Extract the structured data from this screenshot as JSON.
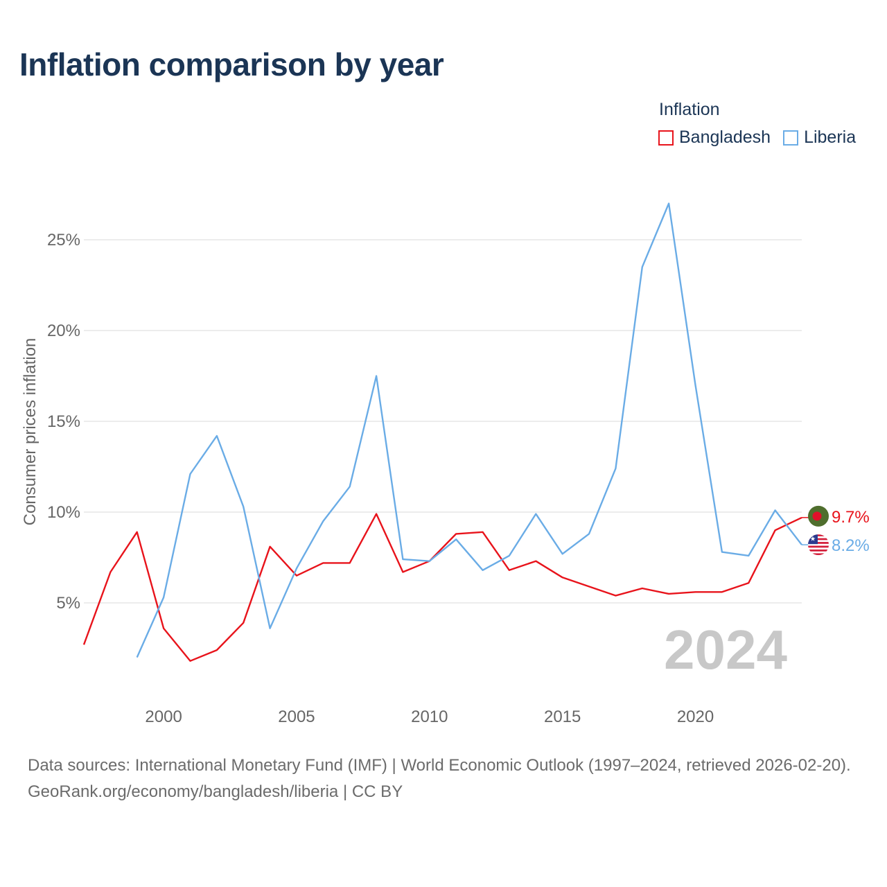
{
  "chart_data": {
    "type": "line",
    "title": "Inflation comparison by year",
    "ylabel": "Consumer prices inflation",
    "xlabel": "",
    "legend_title": "Inflation",
    "legend_position": "top-right",
    "year_watermark": "2024",
    "ylim": [
      0,
      30
    ],
    "xlim": [
      1997,
      2024
    ],
    "yticks": [
      5,
      10,
      15,
      20,
      25
    ],
    "ytick_labels": [
      "5%",
      "10%",
      "15%",
      "20%",
      "25%"
    ],
    "xticks": [
      2000,
      2005,
      2010,
      2015,
      2020
    ],
    "xtick_labels": [
      "2000",
      "2005",
      "2010",
      "2015",
      "2020"
    ],
    "series": [
      {
        "name": "Bangladesh",
        "color": "#e8131b",
        "end_label": "9.7%",
        "flag_icon": "bangladesh-flag-icon",
        "x": [
          1997,
          1998,
          1999,
          2000,
          2001,
          2002,
          2003,
          2004,
          2005,
          2006,
          2007,
          2008,
          2009,
          2010,
          2011,
          2012,
          2013,
          2014,
          2015,
          2016,
          2017,
          2018,
          2019,
          2020,
          2021,
          2022,
          2023,
          2024
        ],
        "values": [
          2.7,
          6.7,
          8.9,
          3.6,
          1.8,
          2.4,
          3.9,
          8.1,
          6.5,
          7.2,
          7.2,
          9.9,
          6.7,
          7.3,
          8.8,
          8.9,
          6.8,
          7.3,
          6.4,
          5.9,
          5.4,
          5.8,
          5.5,
          5.6,
          5.6,
          6.1,
          9.0,
          9.7
        ]
      },
      {
        "name": "Liberia",
        "color": "#6aace6",
        "end_label": "8.2%",
        "flag_icon": "liberia-flag-icon",
        "x": [
          1999,
          2000,
          2001,
          2002,
          2003,
          2004,
          2005,
          2006,
          2007,
          2008,
          2009,
          2010,
          2011,
          2012,
          2013,
          2014,
          2015,
          2016,
          2017,
          2018,
          2019,
          2020,
          2021,
          2022,
          2023,
          2024
        ],
        "values": [
          2.0,
          5.3,
          12.1,
          14.2,
          10.3,
          3.6,
          6.9,
          9.5,
          11.4,
          17.5,
          7.4,
          7.3,
          8.5,
          6.8,
          7.6,
          9.9,
          7.7,
          8.8,
          12.4,
          23.5,
          27.0,
          17.0,
          7.8,
          7.6,
          10.1,
          8.2
        ]
      }
    ]
  },
  "footer": {
    "sources": "Data sources: International Monetary Fund (IMF) | World Economic Outlook (1997–2024, retrieved 2026-02-20).",
    "credit": "GeoRank.org/economy/bangladesh/liberia | CC BY"
  },
  "colors": {
    "title": "#1b3555",
    "grid": "#e6e6e6",
    "axis_text": "#666666",
    "watermark": "#c8c8c8",
    "bangladesh_flag_green": "#4f6e2d",
    "bangladesh_flag_red": "#e0102a",
    "liberia_flag_red": "#d31f3a",
    "liberia_flag_blue": "#2a3b8f"
  }
}
